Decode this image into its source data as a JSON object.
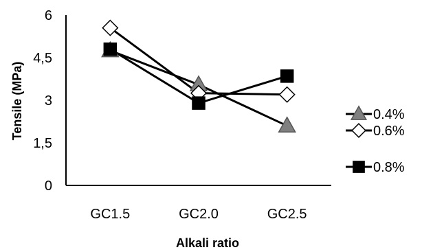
{
  "chart_data": {
    "type": "line",
    "title": "",
    "xlabel": "Alkali ratio",
    "ylabel": "Tensile (MPa)",
    "categories": [
      "GC1.5",
      "GC2.0",
      "GC2.5"
    ],
    "ylim": [
      0,
      6
    ],
    "yticks": [
      0,
      1.5,
      3,
      4.5,
      6
    ],
    "ytick_labels": [
      "0",
      "1,5",
      "3",
      "4,5",
      "6"
    ],
    "grid": false,
    "legend_placement": "right",
    "series": [
      {
        "name": "0.4%",
        "values": [
          4.75,
          3.55,
          2.1
        ],
        "color": "#808080",
        "marker": "triangle",
        "marker_fill": "#808080"
      },
      {
        "name": "0.6%",
        "values": [
          5.55,
          3.25,
          3.2
        ],
        "color": "#000000",
        "marker": "diamond",
        "marker_fill": "#ffffff"
      },
      {
        "name": "0.8%",
        "values": [
          4.8,
          2.9,
          3.85
        ],
        "color": "#000000",
        "marker": "square",
        "marker_fill": "#000000"
      }
    ]
  }
}
